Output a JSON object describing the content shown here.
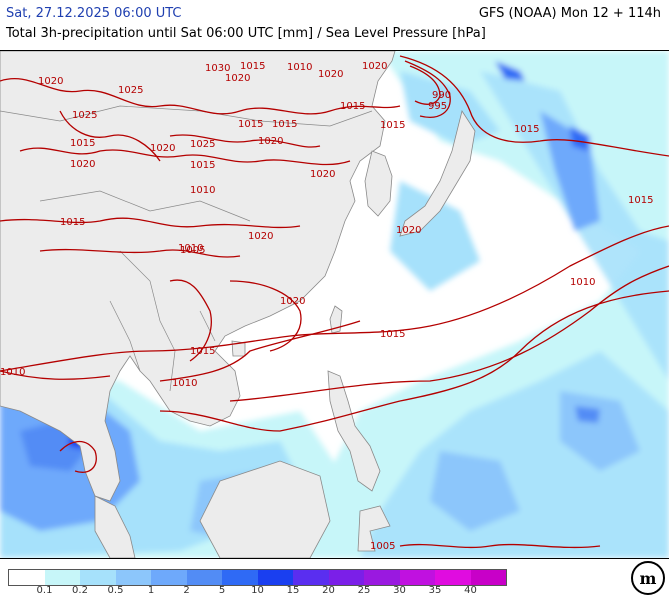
{
  "header": {
    "date": "Sat, 27.12.2025 06:00 UTC",
    "model": "GFS (NOAA) Mon 12 + 114h",
    "subtitle": "Total 3h-precipitation until Sat 06:00 UTC [mm] / Sea Level Pressure [hPa]"
  },
  "colors": {
    "land": "#ececec",
    "land_border": "#8a8a8a",
    "isobar": "#b40000",
    "sea": "#ffffff"
  },
  "isobar_labels": [
    "1020",
    "1025",
    "1015",
    "1020",
    "1030",
    "1025",
    "1020",
    "1015",
    "1010",
    "1020",
    "1020",
    "1015",
    "1010",
    "1020",
    "1015",
    "1015",
    "1015",
    "1020",
    "1025",
    "1020",
    "1015",
    "1010",
    "1015",
    "1020",
    "990",
    "995",
    "1015",
    "1015",
    "1020",
    "1005",
    "1015",
    "1010",
    "1015",
    "1010",
    "1010",
    "1020",
    "1005"
  ],
  "legend": {
    "ticks": [
      "0.1",
      "0.2",
      "0.5",
      "1",
      "2",
      "5",
      "10",
      "15",
      "20",
      "25",
      "30",
      "35",
      "40"
    ],
    "colors": [
      "#ffffff",
      "#c7f6f9",
      "#a6e1fb",
      "#8cc6fb",
      "#6ea9fb",
      "#528cf5",
      "#2f6af5",
      "#1a3ff0",
      "#5a2ef0",
      "#7b1fe8",
      "#9a19e0",
      "#c011e0",
      "#e00ce0",
      "#c800c8"
    ]
  },
  "logo": {
    "icon": "meteologix-logo",
    "text": "m"
  }
}
